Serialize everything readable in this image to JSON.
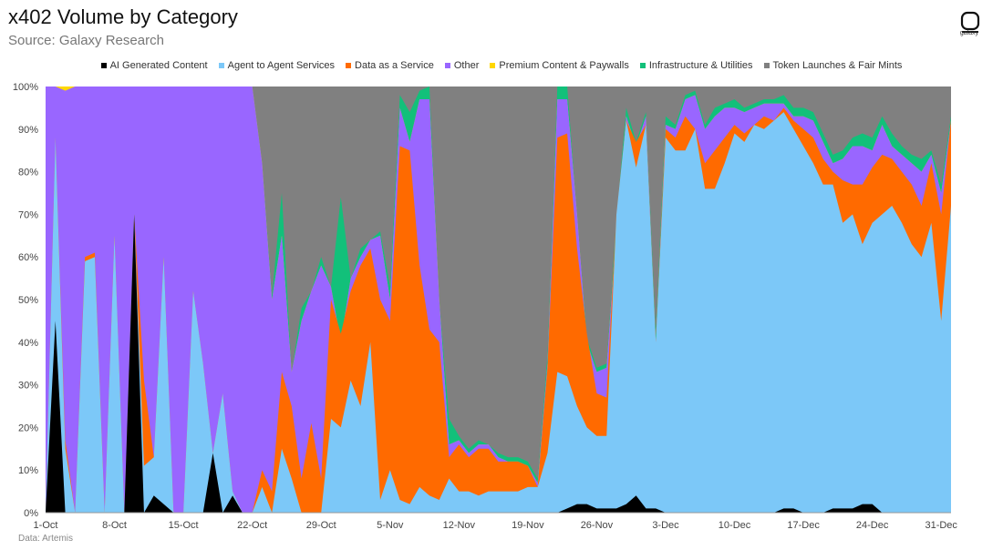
{
  "header": {
    "title": "x402 Volume by Category",
    "subtitle": "Source: Galaxy Research",
    "logo_text": "galaxy"
  },
  "footer": {
    "source": "Data: Artemis"
  },
  "chart_data": {
    "type": "area",
    "stacked": true,
    "normalized": true,
    "title": "x402 Volume by Category",
    "subtitle": "Source: Galaxy Research",
    "xlabel": "",
    "ylabel": "",
    "ylim": [
      0,
      100
    ],
    "yticks": [
      "0%",
      "10%",
      "20%",
      "30%",
      "40%",
      "50%",
      "60%",
      "70%",
      "80%",
      "90%",
      "100%"
    ],
    "xtick_labels": [
      "1-Oct",
      "8-Oct",
      "15-Oct",
      "22-Oct",
      "29-Oct",
      "5-Nov",
      "12-Nov",
      "19-Nov",
      "26-Nov",
      "3-Dec",
      "10-Dec",
      "17-Dec",
      "24-Dec",
      "31-Dec"
    ],
    "xtick_index": [
      0,
      7,
      14,
      21,
      28,
      35,
      42,
      49,
      56,
      63,
      70,
      77,
      84,
      91
    ],
    "legend_position": "top",
    "grid": false,
    "series": [
      {
        "name": "AI Generated Content",
        "color": "#000000",
        "cumulative": [
          0,
          45,
          0,
          0,
          0,
          0,
          0,
          0,
          0,
          70,
          0,
          4,
          2,
          0,
          0,
          0,
          0,
          14,
          0,
          4,
          0,
          0,
          0,
          0,
          0,
          0,
          0,
          0,
          0,
          0,
          0,
          0,
          0,
          0,
          0,
          0,
          0,
          0,
          0,
          0,
          0,
          0,
          0,
          0,
          0,
          0,
          0,
          0,
          0,
          0,
          0,
          0,
          0,
          1,
          2,
          2,
          1,
          1,
          1,
          2,
          4,
          1,
          1,
          0,
          0,
          0,
          0,
          0,
          0,
          0,
          0,
          0,
          0,
          0,
          0,
          1,
          1,
          0,
          0,
          0,
          1,
          1,
          1,
          2,
          2,
          0,
          0,
          0,
          0,
          0,
          0,
          0,
          0
        ]
      },
      {
        "name": "Agent to Agent Services",
        "color": "#7cc8f8",
        "cumulative": [
          0,
          88,
          15,
          0,
          59,
          60,
          0,
          65,
          0,
          70,
          11,
          13,
          60,
          0,
          0,
          52,
          35,
          14,
          28,
          5,
          0,
          0,
          6,
          0,
          15,
          8,
          0,
          0,
          0,
          22,
          20,
          31,
          25,
          40,
          3,
          10,
          3,
          2,
          6,
          4,
          3,
          8,
          5,
          5,
          4,
          5,
          5,
          5,
          5,
          6,
          6,
          14,
          33,
          32,
          25,
          20,
          18,
          18,
          70,
          92,
          81,
          91,
          40,
          88,
          85,
          85,
          90,
          76,
          76,
          82,
          89,
          87,
          91,
          90,
          92,
          94,
          90,
          86,
          82,
          77,
          77,
          68,
          70,
          63,
          68,
          70,
          72,
          68,
          63,
          60,
          68,
          45,
          72
        ]
      },
      {
        "name": "Data as a Service",
        "color": "#ff6a00",
        "cumulative": [
          0,
          88,
          17,
          0,
          60,
          61,
          0,
          65,
          0,
          70,
          31,
          13,
          60,
          0,
          0,
          52,
          35,
          14,
          28,
          5,
          0,
          0,
          10,
          5,
          33,
          25,
          8,
          21,
          8,
          50,
          42,
          52,
          58,
          62,
          50,
          45,
          86,
          85,
          58,
          43,
          40,
          13,
          16,
          13,
          15,
          15,
          12,
          12,
          12,
          11,
          6,
          34,
          88,
          89,
          62,
          42,
          28,
          27,
          70,
          92,
          87,
          91,
          40,
          90,
          88,
          93,
          90,
          82,
          85,
          88,
          91,
          89,
          91,
          93,
          92,
          95,
          92,
          90,
          88,
          83,
          80,
          78,
          77,
          77,
          81,
          84,
          83,
          80,
          77,
          72,
          82,
          70,
          92
        ]
      },
      {
        "name": "Other",
        "color": "#9966ff",
        "cumulative": [
          100,
          100,
          99,
          100,
          100,
          100,
          100,
          100,
          100,
          100,
          100,
          100,
          100,
          100,
          100,
          100,
          100,
          100,
          100,
          100,
          100,
          100,
          82,
          50,
          65,
          33,
          45,
          52,
          58,
          53,
          40,
          55,
          60,
          64,
          65,
          50,
          95,
          87,
          97,
          97,
          50,
          16,
          17,
          14,
          16,
          16,
          13,
          12,
          12,
          11,
          7,
          35,
          97,
          97,
          70,
          40,
          33,
          34,
          67,
          93,
          86,
          93,
          40,
          91,
          90,
          97,
          98,
          90,
          93,
          95,
          95,
          94,
          95,
          96,
          96,
          96,
          93,
          93,
          92,
          87,
          82,
          83,
          86,
          86,
          85,
          91,
          86,
          84,
          82,
          80,
          84,
          75,
          92
        ]
      },
      {
        "name": "Premium Content & Paywalls",
        "color": "#ffd700",
        "cumulative": [
          100,
          100,
          100,
          100,
          100,
          100,
          100,
          100,
          100,
          100,
          100,
          100,
          100,
          100,
          100,
          100,
          100,
          100,
          100,
          100,
          100,
          100,
          82,
          50,
          65,
          33,
          45,
          52,
          58,
          53,
          40,
          55,
          60,
          64,
          65,
          50,
          95,
          87,
          97,
          97,
          50,
          16,
          17,
          14,
          16,
          16,
          13,
          12,
          12,
          11,
          7,
          35,
          97,
          97,
          70,
          40,
          33,
          34,
          67,
          93,
          86,
          93,
          40,
          91,
          90,
          97,
          98,
          90,
          93,
          95,
          95,
          94,
          95,
          96,
          96,
          96,
          93,
          93,
          92,
          87,
          82,
          83,
          86,
          86,
          85,
          91,
          86,
          84,
          82,
          80,
          84,
          75,
          92
        ]
      },
      {
        "name": "Infrastructure & Utilities",
        "color": "#12c07a",
        "cumulative": [
          100,
          100,
          100,
          100,
          100,
          100,
          100,
          100,
          100,
          100,
          100,
          100,
          100,
          100,
          100,
          100,
          100,
          100,
          100,
          100,
          100,
          100,
          82,
          51,
          75,
          33,
          48,
          52,
          60,
          53,
          74,
          55,
          62,
          64,
          66,
          53,
          98,
          94,
          99,
          100,
          50,
          22,
          18,
          15,
          17,
          16,
          14,
          13,
          13,
          12,
          8,
          37,
          100,
          100,
          70,
          41,
          34,
          35,
          69,
          95,
          87,
          94,
          42,
          93,
          91,
          98,
          99,
          91,
          95,
          96,
          97,
          95,
          96,
          97,
          97,
          98,
          95,
          95,
          94,
          89,
          84,
          85,
          88,
          89,
          88,
          93,
          89,
          86,
          84,
          83,
          85,
          77,
          93
        ]
      },
      {
        "name": "Token Launches & Fair Mints",
        "color": "#808080",
        "cumulative": [
          100,
          100,
          100,
          100,
          100,
          100,
          100,
          100,
          100,
          100,
          100,
          100,
          100,
          100,
          100,
          100,
          100,
          100,
          100,
          100,
          100,
          100,
          100,
          100,
          100,
          100,
          100,
          100,
          100,
          100,
          100,
          100,
          100,
          100,
          100,
          100,
          100,
          100,
          100,
          100,
          100,
          100,
          100,
          100,
          100,
          100,
          100,
          100,
          100,
          100,
          100,
          100,
          100,
          100,
          100,
          100,
          100,
          100,
          100,
          100,
          100,
          100,
          100,
          100,
          100,
          100,
          100,
          100,
          100,
          100,
          100,
          100,
          100,
          100,
          100,
          100,
          100,
          100,
          100,
          100,
          100,
          100,
          100,
          100,
          100,
          100,
          100,
          100,
          100,
          100,
          100,
          100,
          100
        ]
      }
    ]
  }
}
